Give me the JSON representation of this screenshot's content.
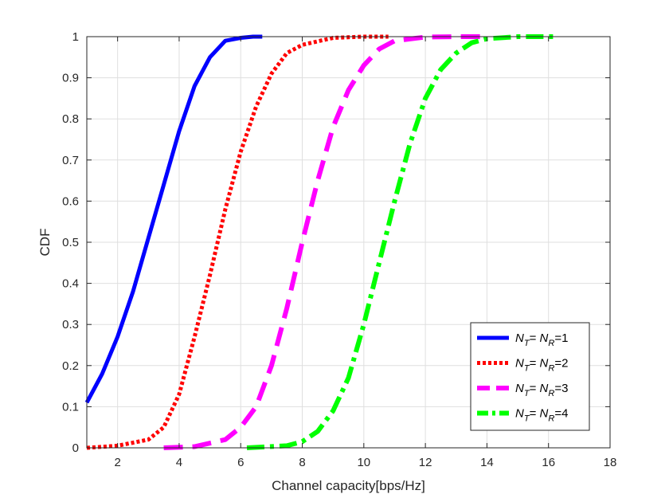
{
  "chart_data": {
    "type": "line",
    "xlabel": "Channel capacity[bps/Hz]",
    "ylabel": "CDF",
    "xlim": [
      1,
      18
    ],
    "ylim": [
      0,
      1
    ],
    "xticks": [
      2,
      4,
      6,
      8,
      10,
      12,
      14,
      16,
      18
    ],
    "yticks": [
      0,
      0.1,
      0.2,
      0.3,
      0.4,
      0.5,
      0.6,
      0.7,
      0.8,
      0.9,
      1
    ],
    "grid": true,
    "legend_position": "bottom-right",
    "series": [
      {
        "name": "N_T = N_R = 1",
        "legend": {
          "a": "N",
          "a_sub": "T",
          "eq": "= ",
          "b": "N",
          "b_sub": "R",
          "val": "=1"
        },
        "color": "#0000ff",
        "style": "solid",
        "x": [
          1.0,
          1.5,
          2.0,
          2.5,
          3.0,
          3.5,
          4.0,
          4.5,
          5.0,
          5.5,
          6.0,
          6.4,
          6.7
        ],
        "y": [
          0.11,
          0.18,
          0.27,
          0.38,
          0.51,
          0.64,
          0.77,
          0.88,
          0.95,
          0.99,
          0.997,
          1.0,
          1.0
        ]
      },
      {
        "name": "N_T = N_R = 2",
        "legend": {
          "a": "N",
          "a_sub": "T",
          "eq": "= ",
          "b": "N",
          "b_sub": "R",
          "val": "=2"
        },
        "color": "#ff0000",
        "style": "dotted",
        "x": [
          1.0,
          2.0,
          3.0,
          3.5,
          4.0,
          4.5,
          5.0,
          5.5,
          6.0,
          6.5,
          7.0,
          7.5,
          8.0,
          9.0,
          10.0,
          10.8
        ],
        "y": [
          0.0,
          0.005,
          0.02,
          0.05,
          0.13,
          0.27,
          0.42,
          0.58,
          0.72,
          0.83,
          0.91,
          0.96,
          0.98,
          0.997,
          1.0,
          1.0
        ]
      },
      {
        "name": "N_T = N_R = 3",
        "legend": {
          "a": "N",
          "a_sub": "T",
          "eq": "= ",
          "b": "N",
          "b_sub": "R",
          "val": "=3"
        },
        "color": "#ff00ff",
        "style": "dashed",
        "x": [
          3.5,
          4.5,
          5.5,
          6.0,
          6.5,
          7.0,
          7.5,
          8.0,
          8.5,
          9.0,
          9.5,
          10.0,
          10.5,
          11.0,
          12.0,
          13.0,
          14.0
        ],
        "y": [
          0.0,
          0.003,
          0.02,
          0.05,
          0.1,
          0.2,
          0.34,
          0.5,
          0.65,
          0.78,
          0.87,
          0.93,
          0.97,
          0.99,
          0.999,
          1.0,
          1.0
        ]
      },
      {
        "name": "N_T = N_R = 4",
        "legend": {
          "a": "N",
          "a_sub": "T",
          "eq": "= ",
          "b": "N",
          "b_sub": "R",
          "val": "=4"
        },
        "color": "#00ff00",
        "style": "dashdot",
        "x": [
          6.2,
          7.5,
          8.0,
          8.5,
          9.0,
          9.5,
          10.0,
          10.5,
          11.0,
          11.5,
          12.0,
          12.5,
          13.0,
          13.5,
          14.0,
          15.0,
          16.2
        ],
        "y": [
          0.0,
          0.005,
          0.015,
          0.04,
          0.09,
          0.17,
          0.3,
          0.45,
          0.6,
          0.74,
          0.85,
          0.92,
          0.96,
          0.985,
          0.995,
          1.0,
          1.0
        ]
      }
    ]
  }
}
